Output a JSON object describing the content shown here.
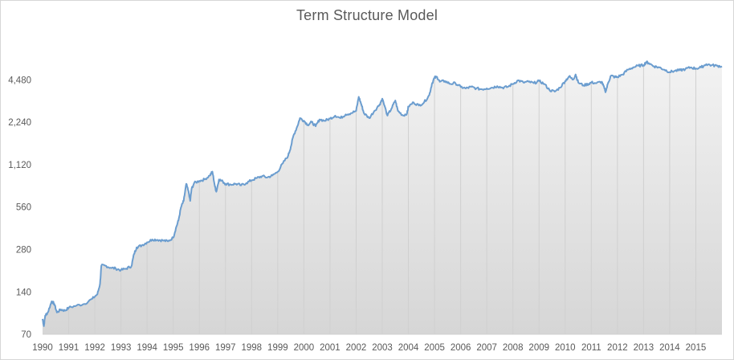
{
  "chart_data": {
    "type": "area",
    "title": "Term Structure Model",
    "xlabel": "",
    "ylabel": "",
    "y_scale": "log2",
    "ylim": [
      70,
      6600
    ],
    "xlim": [
      1990,
      2016
    ],
    "grid": "vertical-year-lines",
    "legend": "none",
    "colors": {
      "line": "#6b9dcf",
      "fill_top": "#f2f2f2",
      "fill_bottom": "#d6d6d6",
      "gridline": "#d0d0d0",
      "title": "#595959",
      "tick_text": "#404040"
    },
    "y_ticks": [
      70,
      140,
      280,
      560,
      1120,
      2240,
      4480
    ],
    "y_tick_labels": [
      "70",
      "140",
      "280",
      "560",
      "1,120",
      "2,240",
      "4,480"
    ],
    "x_ticks": [
      1990,
      1991,
      1992,
      1993,
      1994,
      1995,
      1996,
      1997,
      1998,
      1999,
      2000,
      2001,
      2002,
      2003,
      2004,
      2005,
      2006,
      2007,
      2008,
      2009,
      2010,
      2011,
      2012,
      2013,
      2014,
      2015
    ],
    "x_tick_labels": [
      "1990",
      "1991",
      "1992",
      "1993",
      "1994",
      "1995",
      "1996",
      "1997",
      "1998",
      "1999",
      "2000",
      "2001",
      "2002",
      "2003",
      "2004",
      "2005",
      "2006",
      "2007",
      "2008",
      "2009",
      "2010",
      "2011",
      "2012",
      "2013",
      "2014",
      "2015"
    ],
    "series": [
      {
        "points": [
          [
            1990.0,
            90
          ],
          [
            1990.05,
            80
          ],
          [
            1990.1,
            95
          ],
          [
            1990.2,
            100
          ],
          [
            1990.35,
            120
          ],
          [
            1990.45,
            115
          ],
          [
            1990.55,
            100
          ],
          [
            1990.7,
            105
          ],
          [
            1990.85,
            103
          ],
          [
            1991.0,
            108
          ],
          [
            1991.3,
            112
          ],
          [
            1991.6,
            115
          ],
          [
            1991.9,
            125
          ],
          [
            1992.1,
            135
          ],
          [
            1992.2,
            160
          ],
          [
            1992.25,
            215
          ],
          [
            1992.4,
            215
          ],
          [
            1992.6,
            208
          ],
          [
            1992.8,
            205
          ],
          [
            1993.0,
            200
          ],
          [
            1993.2,
            205
          ],
          [
            1993.4,
            213
          ],
          [
            1993.5,
            260
          ],
          [
            1993.6,
            290
          ],
          [
            1993.8,
            300
          ],
          [
            1994.0,
            315
          ],
          [
            1994.2,
            330
          ],
          [
            1994.4,
            328
          ],
          [
            1994.6,
            325
          ],
          [
            1994.8,
            320
          ],
          [
            1995.0,
            340
          ],
          [
            1995.1,
            395
          ],
          [
            1995.2,
            450
          ],
          [
            1995.3,
            560
          ],
          [
            1995.4,
            620
          ],
          [
            1995.5,
            820
          ],
          [
            1995.6,
            700
          ],
          [
            1995.65,
            620
          ],
          [
            1995.7,
            750
          ],
          [
            1995.8,
            830
          ],
          [
            1996.0,
            860
          ],
          [
            1996.2,
            880
          ],
          [
            1996.4,
            940
          ],
          [
            1996.5,
            1000
          ],
          [
            1996.6,
            780
          ],
          [
            1996.65,
            720
          ],
          [
            1996.75,
            880
          ],
          [
            1996.9,
            850
          ],
          [
            1997.0,
            820
          ],
          [
            1997.2,
            810
          ],
          [
            1997.4,
            820
          ],
          [
            1997.6,
            800
          ],
          [
            1997.8,
            830
          ],
          [
            1998.0,
            870
          ],
          [
            1998.2,
            900
          ],
          [
            1998.4,
            930
          ],
          [
            1998.6,
            910
          ],
          [
            1998.8,
            940
          ],
          [
            1999.0,
            1000
          ],
          [
            1999.2,
            1150
          ],
          [
            1999.4,
            1300
          ],
          [
            1999.5,
            1500
          ],
          [
            1999.6,
            1800
          ],
          [
            1999.75,
            2100
          ],
          [
            1999.85,
            2400
          ],
          [
            2000.0,
            2300
          ],
          [
            2000.15,
            2150
          ],
          [
            2000.3,
            2250
          ],
          [
            2000.45,
            2100
          ],
          [
            2000.6,
            2350
          ],
          [
            2000.8,
            2300
          ],
          [
            2001.0,
            2380
          ],
          [
            2001.2,
            2500
          ],
          [
            2001.4,
            2400
          ],
          [
            2001.6,
            2550
          ],
          [
            2001.8,
            2600
          ],
          [
            2002.0,
            2700
          ],
          [
            2002.1,
            3400
          ],
          [
            2002.2,
            3000
          ],
          [
            2002.3,
            2600
          ],
          [
            2002.5,
            2400
          ],
          [
            2002.7,
            2700
          ],
          [
            2002.9,
            3000
          ],
          [
            2003.0,
            3300
          ],
          [
            2003.2,
            2500
          ],
          [
            2003.35,
            2800
          ],
          [
            2003.5,
            3200
          ],
          [
            2003.6,
            2700
          ],
          [
            2003.8,
            2500
          ],
          [
            2003.95,
            2600
          ],
          [
            2004.0,
            2900
          ],
          [
            2004.2,
            3100
          ],
          [
            2004.4,
            2950
          ],
          [
            2004.6,
            3100
          ],
          [
            2004.8,
            3500
          ],
          [
            2004.9,
            4200
          ],
          [
            2005.0,
            4650
          ],
          [
            2005.1,
            4700
          ],
          [
            2005.2,
            4350
          ],
          [
            2005.4,
            4400
          ],
          [
            2005.6,
            4200
          ],
          [
            2005.8,
            4250
          ],
          [
            2006.0,
            4000
          ],
          [
            2006.2,
            3900
          ],
          [
            2006.4,
            4000
          ],
          [
            2006.6,
            3900
          ],
          [
            2006.8,
            3850
          ],
          [
            2007.0,
            3900
          ],
          [
            2007.2,
            3950
          ],
          [
            2007.4,
            4050
          ],
          [
            2007.6,
            3950
          ],
          [
            2007.8,
            4000
          ],
          [
            2008.0,
            4200
          ],
          [
            2008.2,
            4450
          ],
          [
            2008.4,
            4300
          ],
          [
            2008.6,
            4350
          ],
          [
            2008.8,
            4250
          ],
          [
            2009.0,
            4400
          ],
          [
            2009.2,
            4200
          ],
          [
            2009.4,
            3800
          ],
          [
            2009.6,
            3700
          ],
          [
            2009.8,
            3950
          ],
          [
            2010.0,
            4400
          ],
          [
            2010.15,
            4750
          ],
          [
            2010.3,
            4500
          ],
          [
            2010.4,
            4900
          ],
          [
            2010.5,
            4300
          ],
          [
            2010.7,
            4100
          ],
          [
            2010.9,
            4200
          ],
          [
            2011.0,
            4300
          ],
          [
            2011.2,
            4250
          ],
          [
            2011.4,
            4350
          ],
          [
            2011.5,
            3900
          ],
          [
            2011.55,
            3700
          ],
          [
            2011.65,
            4300
          ],
          [
            2011.75,
            4800
          ],
          [
            2011.9,
            4700
          ],
          [
            2012.0,
            4700
          ],
          [
            2012.2,
            4900
          ],
          [
            2012.4,
            5300
          ],
          [
            2012.6,
            5500
          ],
          [
            2012.8,
            5650
          ],
          [
            2013.0,
            5700
          ],
          [
            2013.1,
            6000
          ],
          [
            2013.2,
            5900
          ],
          [
            2013.4,
            5600
          ],
          [
            2013.6,
            5500
          ],
          [
            2013.8,
            5300
          ],
          [
            2014.0,
            5100
          ],
          [
            2014.2,
            5200
          ],
          [
            2014.4,
            5250
          ],
          [
            2014.6,
            5350
          ],
          [
            2014.8,
            5500
          ],
          [
            2015.0,
            5400
          ],
          [
            2015.2,
            5500
          ],
          [
            2015.4,
            5800
          ],
          [
            2015.6,
            5700
          ],
          [
            2015.8,
            5650
          ],
          [
            2016.0,
            5600
          ]
        ]
      }
    ]
  }
}
